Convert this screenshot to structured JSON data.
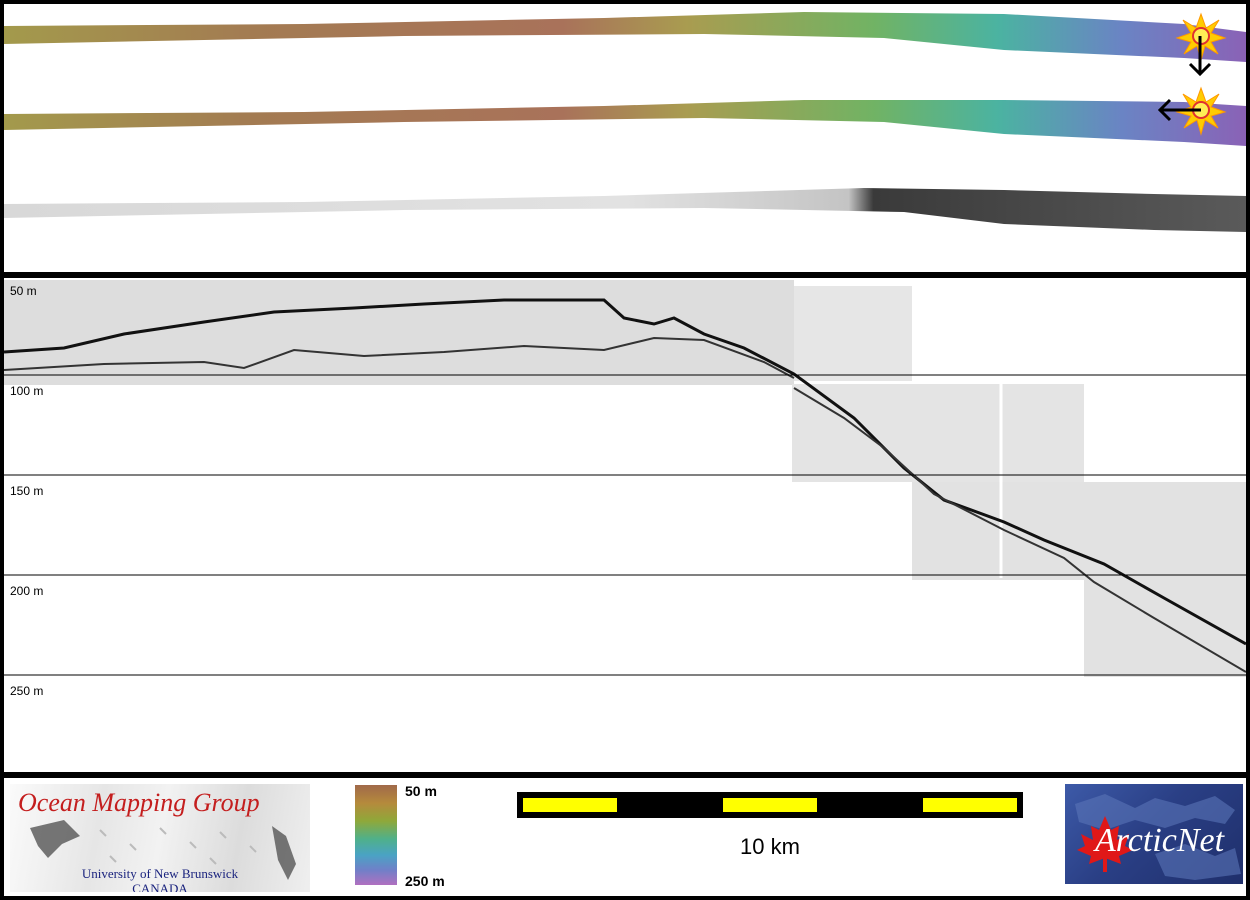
{
  "depth_axis": {
    "labels": [
      "50 m",
      "100 m",
      "150 m",
      "200 m",
      "250 m"
    ]
  },
  "legend": {
    "top_label": "50 m",
    "bottom_label": "250 m",
    "colormap_colors": [
      "#a0694a",
      "#b58a3c",
      "#8fa83a",
      "#4fb08a",
      "#4aa3c4",
      "#7080c8",
      "#b070c0"
    ]
  },
  "scale_bar": {
    "label": "10 km",
    "colors": [
      "#000000",
      "#ffff00"
    ]
  },
  "logos": {
    "omg": {
      "title": "Ocean Mapping Group",
      "university": "University of New Brunswick",
      "country": "CANADA"
    },
    "arcticnet": {
      "text": "ArcticNet"
    }
  },
  "illumination_markers": [
    {
      "icon": "sun-icon",
      "arrow": "arrow-down-icon"
    },
    {
      "icon": "sun-icon",
      "arrow": "arrow-left-icon"
    }
  ]
}
